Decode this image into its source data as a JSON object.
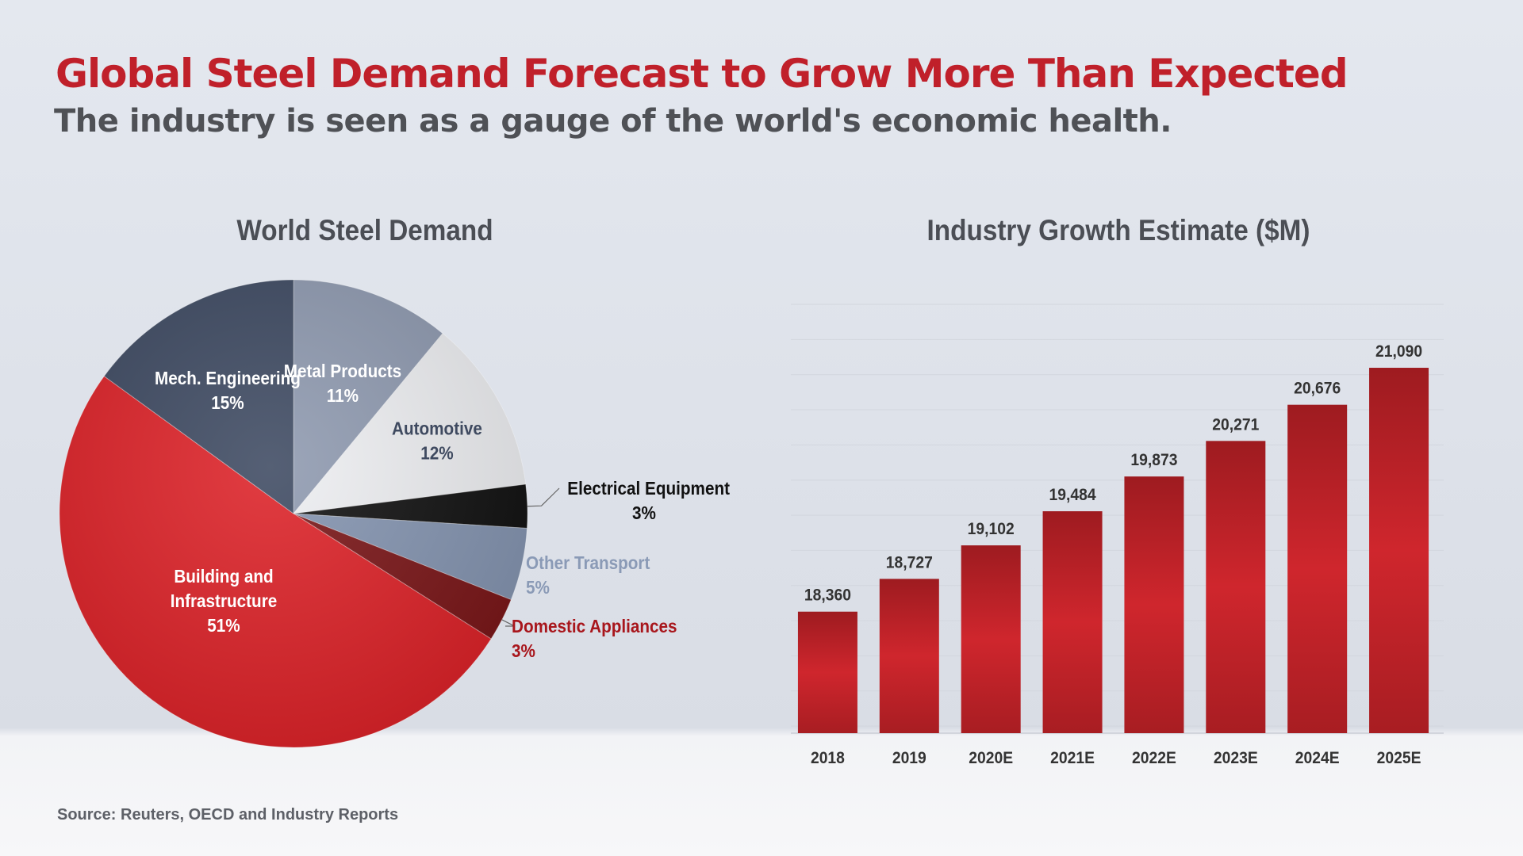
{
  "header": {
    "title": "Global Steel Demand Forecast to Grow More Than Expected",
    "subtitle": "The industry is seen as a gauge of the world's economic health."
  },
  "source": "Source: Reuters, OECD and Industry  Reports",
  "chart_data": [
    {
      "type": "pie",
      "title": "World Steel Demand",
      "slices": [
        {
          "name": "Metal Products",
          "value": 11,
          "label": "11%",
          "color": "#8f9ab0",
          "text_color": "#ffffff"
        },
        {
          "name": "Automotive",
          "value": 12,
          "label": "12%",
          "color": "#eeeff2",
          "text_color": "#3f4a60"
        },
        {
          "name": "Electrical Equipment",
          "value": 3,
          "label": "3%",
          "color": "#111111",
          "text_color": "#111111"
        },
        {
          "name": "Other Transport",
          "value": 5,
          "label": "5%",
          "color": "#8494b0",
          "text_color": "#8a9ab6"
        },
        {
          "name": "Domestic Appliances",
          "value": 3,
          "label": "3%",
          "color": "#7a1618",
          "text_color": "#a8161c"
        },
        {
          "name": "Building and Infrastructure",
          "value": 51,
          "label": "51%",
          "color": "#dd2228",
          "text_color": "#ffffff"
        },
        {
          "name": "Mech. Engineering",
          "value": 15,
          "label": "15%",
          "color": "#3e4a62",
          "text_color": "#ffffff"
        }
      ]
    },
    {
      "type": "bar",
      "title": "Industry Growth Estimate ($M)",
      "categories": [
        "2018",
        "2019",
        "2020E",
        "2021E",
        "2022E",
        "2023E",
        "2024E",
        "2025E"
      ],
      "values": [
        18360,
        18727,
        19102,
        19484,
        19873,
        20271,
        20676,
        21090
      ],
      "value_labels": [
        "18,360",
        "18,727",
        "19,102",
        "19,484",
        "19,873",
        "20,271",
        "20,676",
        "21,090"
      ],
      "ylim": [
        17000,
        21800
      ],
      "grid": true,
      "bar_color": "#c4232a"
    }
  ]
}
